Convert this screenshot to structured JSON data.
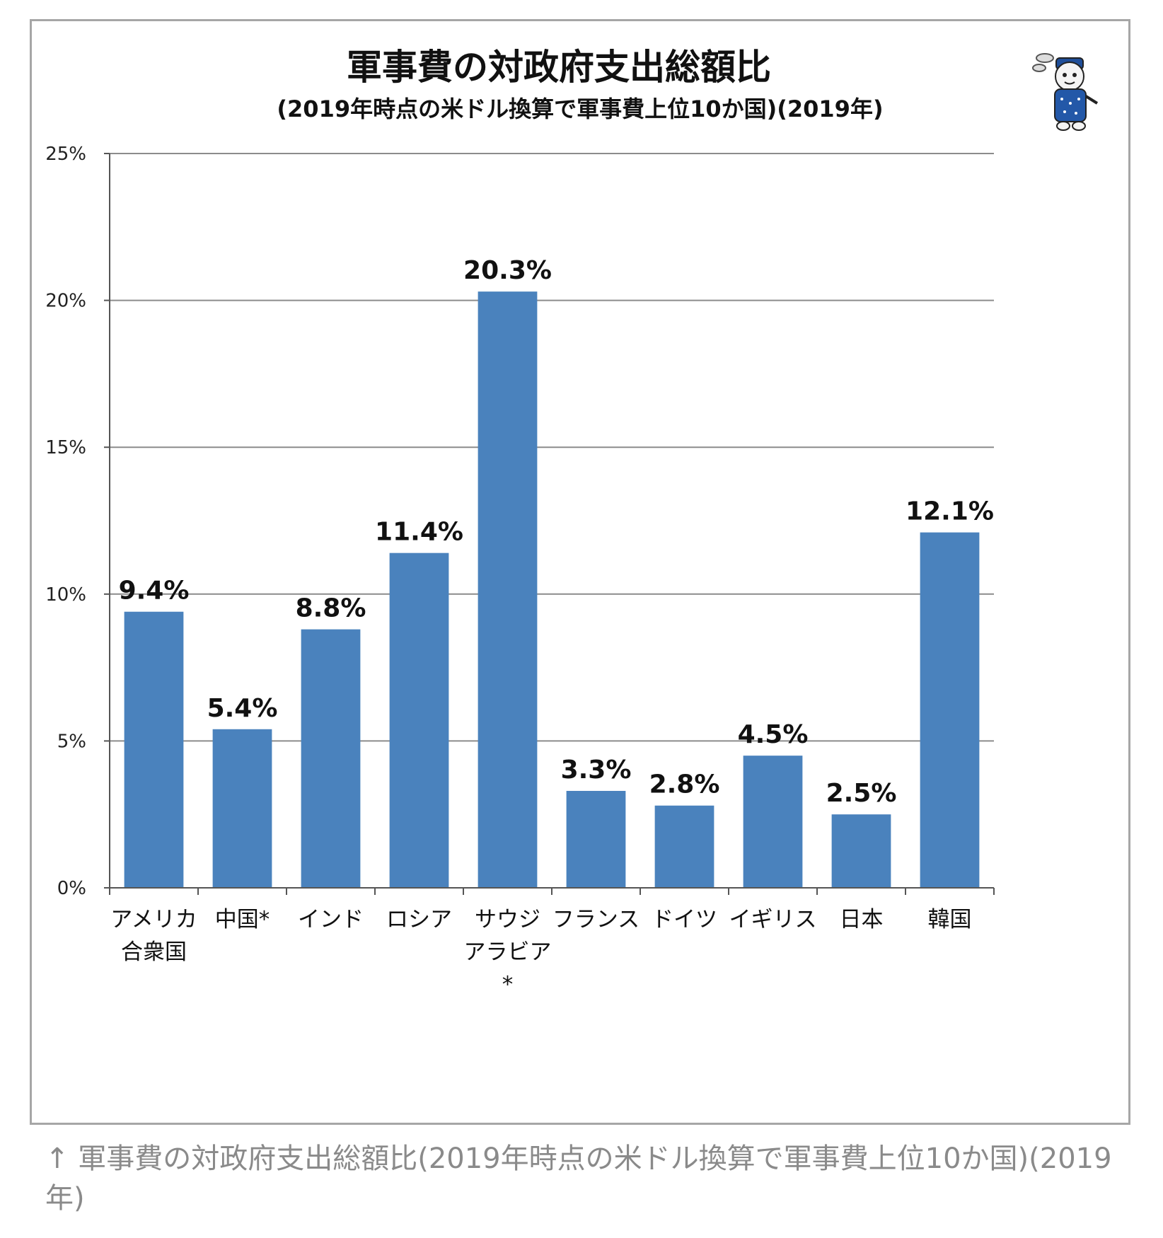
{
  "chart_data": {
    "type": "bar",
    "title": "軍事費の対政府支出総額比",
    "subtitle": "(2019年時点の米ドル換算で軍事費上位10か国)(2019年)",
    "categories": [
      [
        "アメリカ",
        "合衆国"
      ],
      [
        "中国*"
      ],
      [
        "インド"
      ],
      [
        "ロシア"
      ],
      [
        "サウジ",
        "アラビア",
        "*"
      ],
      [
        "フランス"
      ],
      [
        "ドイツ"
      ],
      [
        "イギリス"
      ],
      [
        "日本"
      ],
      [
        "韓国"
      ]
    ],
    "values": [
      9.4,
      5.4,
      8.8,
      11.4,
      20.3,
      3.3,
      2.8,
      4.5,
      2.5,
      12.1
    ],
    "value_labels": [
      "9.4%",
      "5.4%",
      "8.8%",
      "11.4%",
      "20.3%",
      "3.3%",
      "2.8%",
      "4.5%",
      "2.5%",
      "12.1%"
    ],
    "ylim": [
      0,
      25
    ],
    "yticks": [
      0,
      5,
      10,
      15,
      20,
      25
    ],
    "ytick_labels": [
      "0%",
      "5%",
      "10%",
      "15%",
      "20%",
      "25%"
    ],
    "xlabel": "",
    "ylabel": "",
    "grid": true,
    "legend": "none",
    "bar_color": "#4a82bd",
    "gridline_color": "#8c8c8c"
  },
  "mascot_icon": "mascot-character-icon",
  "caption": "↑ 軍事費の対政府支出総額比(2019年時点の米ドル換算で軍事費上位10か国)(2019年)"
}
